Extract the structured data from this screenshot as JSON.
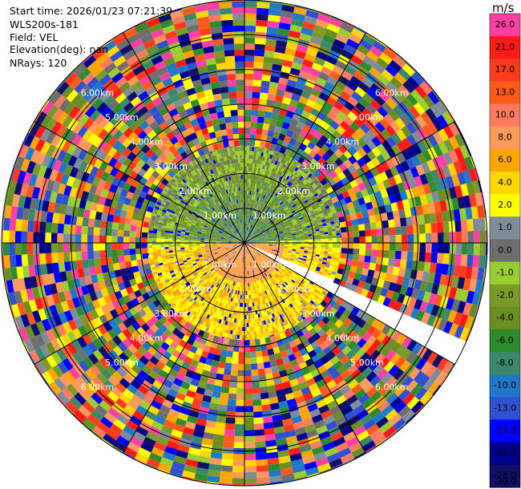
{
  "header": {
    "start_time": "Start time: 2026/01/23 07:21:39",
    "instrument": "WLS200s-181",
    "field": "Field: VEL",
    "elevation": "Elevation(deg): nan",
    "nrays": "NRays: 120"
  },
  "colorbar": {
    "unit": "m/s",
    "bins": [
      {
        "label": "26.0",
        "color": "#ff3fa4"
      },
      {
        "label": "21.0",
        "color": "#ff1a1a"
      },
      {
        "label": "17.0",
        "color": "#ff3b1f"
      },
      {
        "label": "13.0",
        "color": "#ff5a1a"
      },
      {
        "label": "10.0",
        "color": "#ff7a5e"
      },
      {
        "label": "8.0",
        "color": "#ff9a5a"
      },
      {
        "label": "6.0",
        "color": "#ffa500"
      },
      {
        "label": "4.0",
        "color": "#ffd700"
      },
      {
        "label": "2.0",
        "color": "#ffff00"
      },
      {
        "label": "1.0",
        "color": "#7f8c99"
      },
      {
        "label": "0.0",
        "color": "#6e6e6e"
      },
      {
        "label": "-1.0",
        "color": "#9acd32"
      },
      {
        "label": "-2.0",
        "color": "#7a9a2a"
      },
      {
        "label": "-4.0",
        "color": "#6b8e23"
      },
      {
        "label": "-6.0",
        "color": "#2e8b2e"
      },
      {
        "label": "-8.0",
        "color": "#3a8a6a"
      },
      {
        "label": "-10.0",
        "color": "#1f78c8"
      },
      {
        "label": "-13.0",
        "color": "#3050d0"
      },
      {
        "label": "-17.0",
        "color": "#0000ff"
      },
      {
        "label": "-21.0",
        "color": "#00008b"
      },
      {
        "label": "-26.0",
        "color": "#101066"
      },
      {
        "label": "-30.0",
        "color": "#101066"
      }
    ]
  },
  "chart_data": {
    "type": "heatmap",
    "projection": "polar-ppi",
    "field": "VEL",
    "units": "m/s",
    "n_rays": 120,
    "range_rings_km": [
      1.0,
      2.0,
      3.0,
      4.0,
      5.0,
      6.0
    ],
    "range_ring_labels": [
      "1.00km",
      "2.00km",
      "3.00km",
      "4.00km",
      "5.00km",
      "6.00km"
    ],
    "max_range_km": 7.0,
    "color_limits": [
      -30.0,
      26.0
    ],
    "missing_sector_azimuth_deg": [
      113,
      120
    ],
    "near_field_km": 2.8
  }
}
